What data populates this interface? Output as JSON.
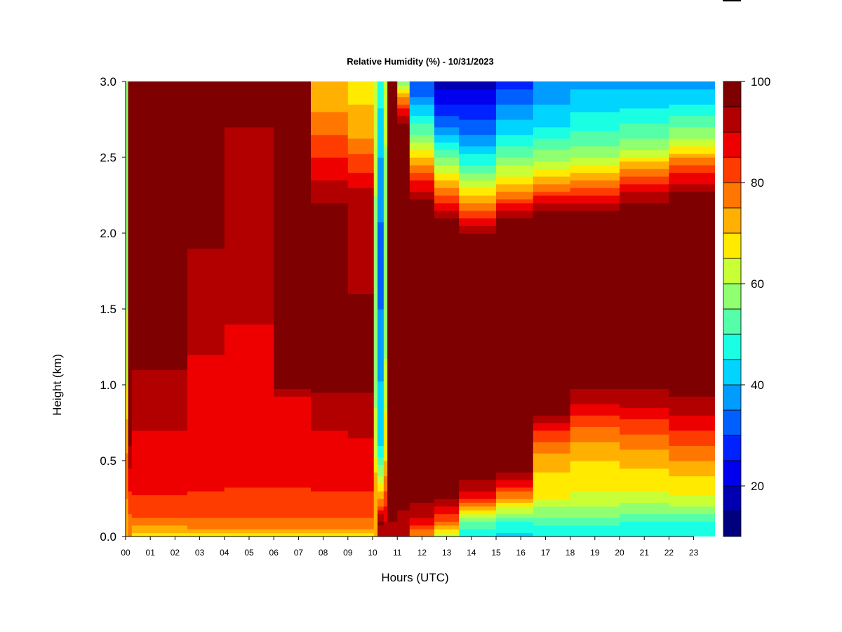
{
  "chart_data": {
    "type": "heatmap",
    "title": "Relative Humidity (%) - 10/31/2023",
    "xlabel": "Hours (UTC)",
    "ylabel": "Height (km)",
    "xlim": [
      0,
      24
    ],
    "ylim": [
      0,
      3
    ],
    "x_ticks": [
      {
        "value": 0,
        "label": "00"
      },
      {
        "value": 1,
        "label": "01"
      },
      {
        "value": 2,
        "label": "02"
      },
      {
        "value": 3,
        "label": "03"
      },
      {
        "value": 4,
        "label": "04"
      },
      {
        "value": 5,
        "label": "05"
      },
      {
        "value": 6,
        "label": "06"
      },
      {
        "value": 7,
        "label": "07"
      },
      {
        "value": 8,
        "label": "08"
      },
      {
        "value": 9,
        "label": "09"
      },
      {
        "value": 10,
        "label": "10"
      },
      {
        "value": 11,
        "label": "11"
      },
      {
        "value": 12,
        "label": "12"
      },
      {
        "value": 13,
        "label": "13"
      },
      {
        "value": 14,
        "label": "14"
      },
      {
        "value": 15,
        "label": "15"
      },
      {
        "value": 16,
        "label": "16"
      },
      {
        "value": 17,
        "label": "17"
      },
      {
        "value": 18,
        "label": "18"
      },
      {
        "value": 19,
        "label": "19"
      },
      {
        "value": 20,
        "label": "20"
      },
      {
        "value": 21,
        "label": "21"
      },
      {
        "value": 22,
        "label": "22"
      },
      {
        "value": 23,
        "label": "23"
      }
    ],
    "y_ticks": [
      {
        "value": 0.0,
        "label": "0.0"
      },
      {
        "value": 0.5,
        "label": "0.5"
      },
      {
        "value": 1.0,
        "label": "1.0"
      },
      {
        "value": 1.5,
        "label": "1.5"
      },
      {
        "value": 2.0,
        "label": "2.0"
      },
      {
        "value": 2.5,
        "label": "2.5"
      },
      {
        "value": 3.0,
        "label": "3.0"
      }
    ],
    "colorbar": {
      "min": 10,
      "max": 100,
      "ticks": [
        {
          "value": 20,
          "label": "20"
        },
        {
          "value": 40,
          "label": "40"
        },
        {
          "value": 60,
          "label": "60"
        },
        {
          "value": 80,
          "label": "80"
        },
        {
          "value": 100,
          "label": "100"
        }
      ],
      "levels": [
        {
          "from": 10,
          "to": 15,
          "color": "#00007f"
        },
        {
          "from": 15,
          "to": 20,
          "color": "#0000b2"
        },
        {
          "from": 20,
          "to": 25,
          "color": "#0000ee"
        },
        {
          "from": 25,
          "to": 30,
          "color": "#0022ff"
        },
        {
          "from": 30,
          "to": 35,
          "color": "#0060ff"
        },
        {
          "from": 35,
          "to": 40,
          "color": "#009cff"
        },
        {
          "from": 40,
          "to": 45,
          "color": "#00d4ff"
        },
        {
          "from": 45,
          "to": 50,
          "color": "#1affe4"
        },
        {
          "from": 50,
          "to": 55,
          "color": "#55ffaa"
        },
        {
          "from": 55,
          "to": 60,
          "color": "#90ff70"
        },
        {
          "from": 60,
          "to": 65,
          "color": "#c8ff36"
        },
        {
          "from": 65,
          "to": 70,
          "color": "#ffea00"
        },
        {
          "from": 70,
          "to": 75,
          "color": "#ffb000"
        },
        {
          "from": 75,
          "to": 80,
          "color": "#ff7600"
        },
        {
          "from": 80,
          "to": 85,
          "color": "#ff3c00"
        },
        {
          "from": 85,
          "to": 90,
          "color": "#ee0000"
        },
        {
          "from": 90,
          "to": 95,
          "color": "#b20000"
        },
        {
          "from": 95,
          "to": 100,
          "color": "#7f0000"
        }
      ]
    },
    "columns": [
      {
        "x0": 0.0,
        "x1": 0.1,
        "profile": [
          [
            0,
            70
          ],
          [
            0.4,
            78
          ],
          [
            1.0,
            65
          ],
          [
            2.0,
            55
          ],
          [
            3.0,
            60
          ]
        ]
      },
      {
        "x0": 0.1,
        "x1": 0.25,
        "profile": [
          [
            0,
            75
          ],
          [
            0.3,
            85
          ],
          [
            0.6,
            95
          ],
          [
            3.0,
            96
          ]
        ]
      },
      {
        "x0": 0.25,
        "x1": 2.5,
        "profile": [
          [
            0,
            68
          ],
          [
            0.05,
            72
          ],
          [
            0.12,
            80
          ],
          [
            0.3,
            86
          ],
          [
            0.7,
            90
          ],
          [
            1.0,
            94
          ],
          [
            1.3,
            97
          ],
          [
            3.0,
            98
          ]
        ]
      },
      {
        "x0": 2.5,
        "x1": 4.0,
        "profile": [
          [
            0,
            68
          ],
          [
            0.05,
            74
          ],
          [
            0.15,
            82
          ],
          [
            0.4,
            87
          ],
          [
            1.0,
            89
          ],
          [
            1.6,
            92
          ],
          [
            2.0,
            96
          ],
          [
            3.0,
            98
          ]
        ]
      },
      {
        "x0": 4.0,
        "x1": 6.0,
        "profile": [
          [
            0,
            68
          ],
          [
            0.05,
            74
          ],
          [
            0.15,
            82
          ],
          [
            0.4,
            86
          ],
          [
            1.0,
            89
          ],
          [
            1.8,
            91
          ],
          [
            2.4,
            94
          ],
          [
            3.0,
            96
          ]
        ]
      },
      {
        "x0": 6.0,
        "x1": 7.5,
        "profile": [
          [
            0,
            68
          ],
          [
            0.05,
            74
          ],
          [
            0.15,
            82
          ],
          [
            0.4,
            86
          ],
          [
            0.9,
            89
          ],
          [
            1.0,
            96
          ],
          [
            3.0,
            98
          ]
        ]
      },
      {
        "x0": 7.5,
        "x1": 9.0,
        "profile": [
          [
            0,
            67
          ],
          [
            0.05,
            74
          ],
          [
            0.15,
            82
          ],
          [
            0.4,
            87
          ],
          [
            0.8,
            91
          ],
          [
            1.0,
            96
          ],
          [
            2.2,
            95
          ],
          [
            2.5,
            85
          ],
          [
            2.8,
            75
          ],
          [
            3.0,
            72
          ]
        ]
      },
      {
        "x0": 9.0,
        "x1": 10.05,
        "profile": [
          [
            0,
            67
          ],
          [
            0.05,
            74
          ],
          [
            0.15,
            82
          ],
          [
            0.4,
            87
          ],
          [
            0.8,
            92
          ],
          [
            1.0,
            96
          ],
          [
            2.2,
            94
          ],
          [
            2.4,
            85
          ],
          [
            2.7,
            72
          ],
          [
            3.0,
            68
          ]
        ]
      },
      {
        "x0": 10.05,
        "x1": 10.2,
        "profile": [
          [
            0,
            70
          ],
          [
            0.3,
            75
          ],
          [
            0.6,
            62
          ],
          [
            1.5,
            55
          ],
          [
            3.0,
            65
          ]
        ]
      },
      {
        "x0": 10.2,
        "x1": 10.45,
        "profile": [
          [
            0,
            92
          ],
          [
            0.1,
            96
          ],
          [
            0.2,
            80
          ],
          [
            0.35,
            65
          ],
          [
            0.6,
            45
          ],
          [
            1.2,
            38
          ],
          [
            1.8,
            32
          ],
          [
            2.5,
            40
          ],
          [
            3.0,
            48
          ]
        ]
      },
      {
        "x0": 10.45,
        "x1": 10.6,
        "profile": [
          [
            0,
            95
          ],
          [
            0.5,
            70
          ],
          [
            1.5,
            55
          ],
          [
            3.0,
            62
          ]
        ]
      },
      {
        "x0": 10.6,
        "x1": 11.0,
        "profile": [
          [
            0,
            92
          ],
          [
            0.15,
            96
          ],
          [
            3.0,
            98
          ]
        ]
      },
      {
        "x0": 11.0,
        "x1": 11.5,
        "profile": [
          [
            0,
            90
          ],
          [
            0.2,
            96
          ],
          [
            2.7,
            97
          ],
          [
            2.85,
            82
          ],
          [
            3.0,
            55
          ]
        ]
      },
      {
        "x0": 11.5,
        "x1": 12.5,
        "profile": [
          [
            0,
            75
          ],
          [
            0.1,
            88
          ],
          [
            0.25,
            96
          ],
          [
            2.2,
            96
          ],
          [
            2.4,
            80
          ],
          [
            2.6,
            60
          ],
          [
            2.9,
            35
          ],
          [
            3.0,
            30
          ]
        ]
      },
      {
        "x0": 12.5,
        "x1": 13.5,
        "profile": [
          [
            0,
            60
          ],
          [
            0.1,
            80
          ],
          [
            0.25,
            96
          ],
          [
            2.1,
            96
          ],
          [
            2.3,
            75
          ],
          [
            2.5,
            55
          ],
          [
            2.7,
            35
          ],
          [
            2.9,
            22
          ],
          [
            3.0,
            17
          ]
        ]
      },
      {
        "x0": 13.5,
        "x1": 15.0,
        "profile": [
          [
            0,
            45
          ],
          [
            0.1,
            55
          ],
          [
            0.2,
            75
          ],
          [
            0.3,
            92
          ],
          [
            0.4,
            96
          ],
          [
            2.0,
            96
          ],
          [
            2.2,
            75
          ],
          [
            2.4,
            55
          ],
          [
            2.6,
            38
          ],
          [
            2.8,
            28
          ],
          [
            3.0,
            18
          ]
        ]
      },
      {
        "x0": 15.0,
        "x1": 16.5,
        "profile": [
          [
            0,
            42
          ],
          [
            0.1,
            50
          ],
          [
            0.22,
            70
          ],
          [
            0.35,
            88
          ],
          [
            0.45,
            96
          ],
          [
            2.1,
            96
          ],
          [
            2.3,
            72
          ],
          [
            2.5,
            55
          ],
          [
            2.7,
            42
          ],
          [
            2.9,
            32
          ],
          [
            3.0,
            27
          ]
        ]
      },
      {
        "x0": 16.5,
        "x1": 18.0,
        "profile": [
          [
            0,
            45
          ],
          [
            0.1,
            52
          ],
          [
            0.25,
            65
          ],
          [
            0.5,
            72
          ],
          [
            0.7,
            85
          ],
          [
            0.8,
            96
          ],
          [
            2.15,
            96
          ],
          [
            2.35,
            72
          ],
          [
            2.5,
            58
          ],
          [
            2.7,
            45
          ],
          [
            3.0,
            35
          ]
        ]
      },
      {
        "x0": 18.0,
        "x1": 20.0,
        "profile": [
          [
            0,
            45
          ],
          [
            0.1,
            52
          ],
          [
            0.25,
            64
          ],
          [
            0.5,
            70
          ],
          [
            0.7,
            78
          ],
          [
            0.9,
            92
          ],
          [
            1.0,
            96
          ],
          [
            2.15,
            96
          ],
          [
            2.35,
            75
          ],
          [
            2.5,
            60
          ],
          [
            2.7,
            48
          ],
          [
            3.0,
            38
          ]
        ]
      },
      {
        "x0": 20.0,
        "x1": 22.0,
        "profile": [
          [
            0,
            45
          ],
          [
            0.1,
            50
          ],
          [
            0.25,
            63
          ],
          [
            0.45,
            70
          ],
          [
            0.65,
            78
          ],
          [
            0.85,
            90
          ],
          [
            1.0,
            96
          ],
          [
            2.2,
            96
          ],
          [
            2.4,
            78
          ],
          [
            2.55,
            60
          ],
          [
            2.75,
            48
          ],
          [
            3.0,
            38
          ]
        ]
      },
      {
        "x0": 22.0,
        "x1": 23.9,
        "profile": [
          [
            0,
            45
          ],
          [
            0.1,
            50
          ],
          [
            0.25,
            64
          ],
          [
            0.45,
            72
          ],
          [
            0.65,
            82
          ],
          [
            0.85,
            92
          ],
          [
            0.95,
            96
          ],
          [
            2.25,
            96
          ],
          [
            2.45,
            80
          ],
          [
            2.6,
            62
          ],
          [
            2.8,
            48
          ],
          [
            3.0,
            38
          ]
        ]
      }
    ]
  }
}
